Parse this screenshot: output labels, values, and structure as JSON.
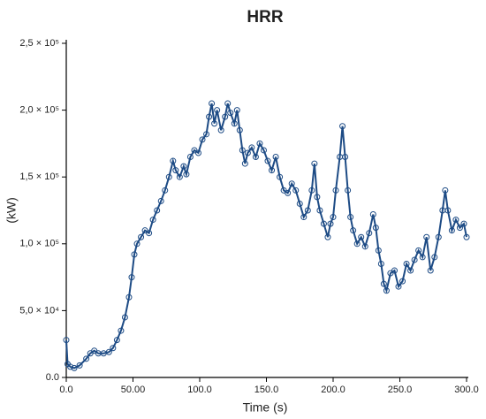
{
  "chart_data": {
    "type": "line",
    "title": "HRR",
    "x_label": "Time (s)",
    "y_label": "(kW)",
    "color": "#1d4b85",
    "xlim": [
      0,
      300
    ],
    "ylim": [
      0,
      250000
    ],
    "xticks": [
      {
        "value": 0,
        "label": "0.0"
      },
      {
        "value": 50,
        "label": "50.00"
      },
      {
        "value": 100,
        "label": "100.0"
      },
      {
        "value": 150,
        "label": "150.0"
      },
      {
        "value": 200,
        "label": "200.0"
      },
      {
        "value": 250,
        "label": "250.0"
      },
      {
        "value": 300,
        "label": "300.0"
      }
    ],
    "yticks": [
      {
        "value": 0,
        "label": "0.0"
      },
      {
        "value": 50000,
        "label": "5,0 × 10⁴"
      },
      {
        "value": 100000,
        "label": "1,0 × 10⁵"
      },
      {
        "value": 150000,
        "label": "1,5 × 10⁵"
      },
      {
        "value": 200000,
        "label": "2,0 × 10⁵"
      },
      {
        "value": 250000,
        "label": "2,5 × 10⁵"
      }
    ],
    "x": [
      0,
      1,
      3,
      6,
      10,
      15,
      18,
      21,
      24,
      28,
      32,
      35,
      38,
      41,
      44,
      47,
      49,
      51,
      53,
      56,
      59,
      62,
      65,
      68,
      71,
      74,
      77,
      80,
      82,
      85,
      88,
      90,
      93,
      96,
      99,
      102,
      105,
      107,
      109,
      111,
      113,
      116,
      119,
      121,
      123,
      126,
      128,
      130,
      132,
      134,
      136,
      139,
      142,
      145,
      148,
      151,
      154,
      157,
      160,
      163,
      166,
      169,
      172,
      175,
      178,
      181,
      184,
      186,
      188,
      190,
      193,
      196,
      198,
      200,
      202,
      205,
      207,
      209,
      211,
      213,
      215,
      218,
      221,
      224,
      227,
      230,
      232,
      234,
      236,
      238,
      240,
      243,
      246,
      249,
      252,
      255,
      258,
      261,
      264,
      267,
      270,
      273,
      276,
      279,
      282,
      284,
      286,
      289,
      292,
      295,
      298,
      300
    ],
    "values": [
      28000,
      10000,
      8000,
      7000,
      9000,
      14000,
      18000,
      20000,
      18000,
      18000,
      19000,
      22000,
      28000,
      35000,
      45000,
      60000,
      75000,
      92000,
      100000,
      105000,
      110000,
      108000,
      118000,
      125000,
      132000,
      140000,
      150000,
      162000,
      155000,
      150000,
      158000,
      152000,
      165000,
      170000,
      168000,
      178000,
      182000,
      195000,
      205000,
      190000,
      200000,
      185000,
      195000,
      205000,
      198000,
      190000,
      200000,
      185000,
      170000,
      160000,
      168000,
      172000,
      165000,
      175000,
      170000,
      162000,
      155000,
      165000,
      150000,
      140000,
      138000,
      145000,
      140000,
      130000,
      120000,
      125000,
      140000,
      160000,
      135000,
      125000,
      115000,
      105000,
      115000,
      120000,
      140000,
      165000,
      188000,
      165000,
      140000,
      120000,
      110000,
      100000,
      105000,
      98000,
      108000,
      122000,
      112000,
      95000,
      85000,
      70000,
      65000,
      78000,
      80000,
      68000,
      72000,
      85000,
      80000,
      88000,
      95000,
      90000,
      105000,
      80000,
      90000,
      105000,
      125000,
      140000,
      125000,
      110000,
      118000,
      112000,
      115000,
      105000
    ]
  }
}
